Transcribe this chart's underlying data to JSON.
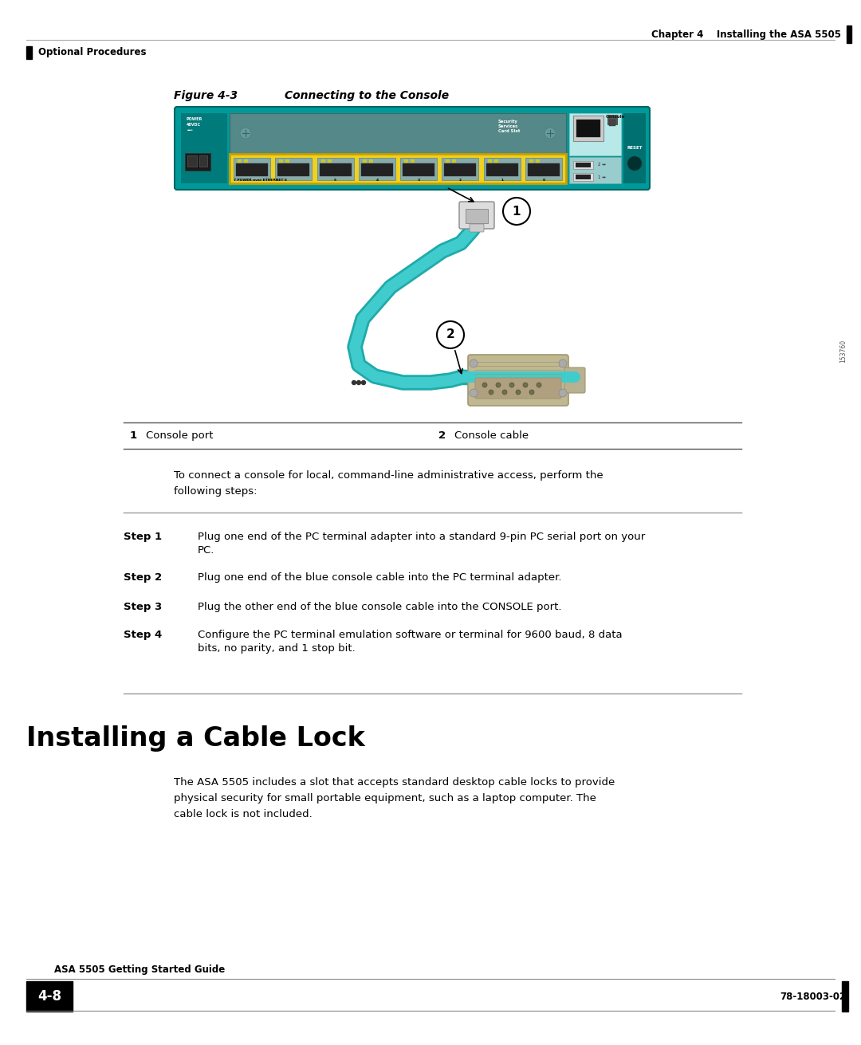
{
  "page_bg": "#ffffff",
  "header_text": "Chapter 4    Installing the ASA 5505",
  "header_line_color": "#aaaaaa",
  "sidebar_label": "Optional Procedures",
  "sidebar_bar_color": "#000000",
  "figure_title": "Figure 4-3",
  "figure_subtitle": "        Connecting to the Console",
  "table_row_1_num": "1",
  "table_row_1_label": "Console port",
  "table_row_2_num": "2",
  "table_row_2_label": "Console cable",
  "intro_line1": "To connect a console for local, command-line administrative access, perform the",
  "intro_line2": "following steps:",
  "steps": [
    [
      "Step 1",
      "Plug one end of the PC terminal adapter into a standard 9-pin PC serial port on your\nPC."
    ],
    [
      "Step 2",
      "Plug one end of the blue console cable into the PC terminal adapter."
    ],
    [
      "Step 3",
      "Plug the other end of the blue console cable into the CONSOLE port."
    ],
    [
      "Step 4",
      "Configure the PC terminal emulation software or terminal for 9600 baud, 8 data\nbits, no parity, and 1 stop bit."
    ]
  ],
  "section_title": "Installing a Cable Lock",
  "section_body_line1": "The ASA 5505 includes a slot that accepts standard desktop cable locks to provide",
  "section_body_line2": "physical security for small portable equipment, such as a laptop computer. The",
  "section_body_line3": "cable lock is not included.",
  "footer_left": "ASA 5505 Getting Started Guide",
  "footer_page": "4-8",
  "footer_right": "78-18003-02",
  "cisco_teal": "#009999",
  "cisco_teal_dark": "#007777",
  "cisco_yellow": "#f0d020",
  "cable_color": "#40cccc",
  "cable_dark": "#20aaaa",
  "connector_color": "#c0b890",
  "connector_dark": "#a09870",
  "steps_line_color": "#999999"
}
